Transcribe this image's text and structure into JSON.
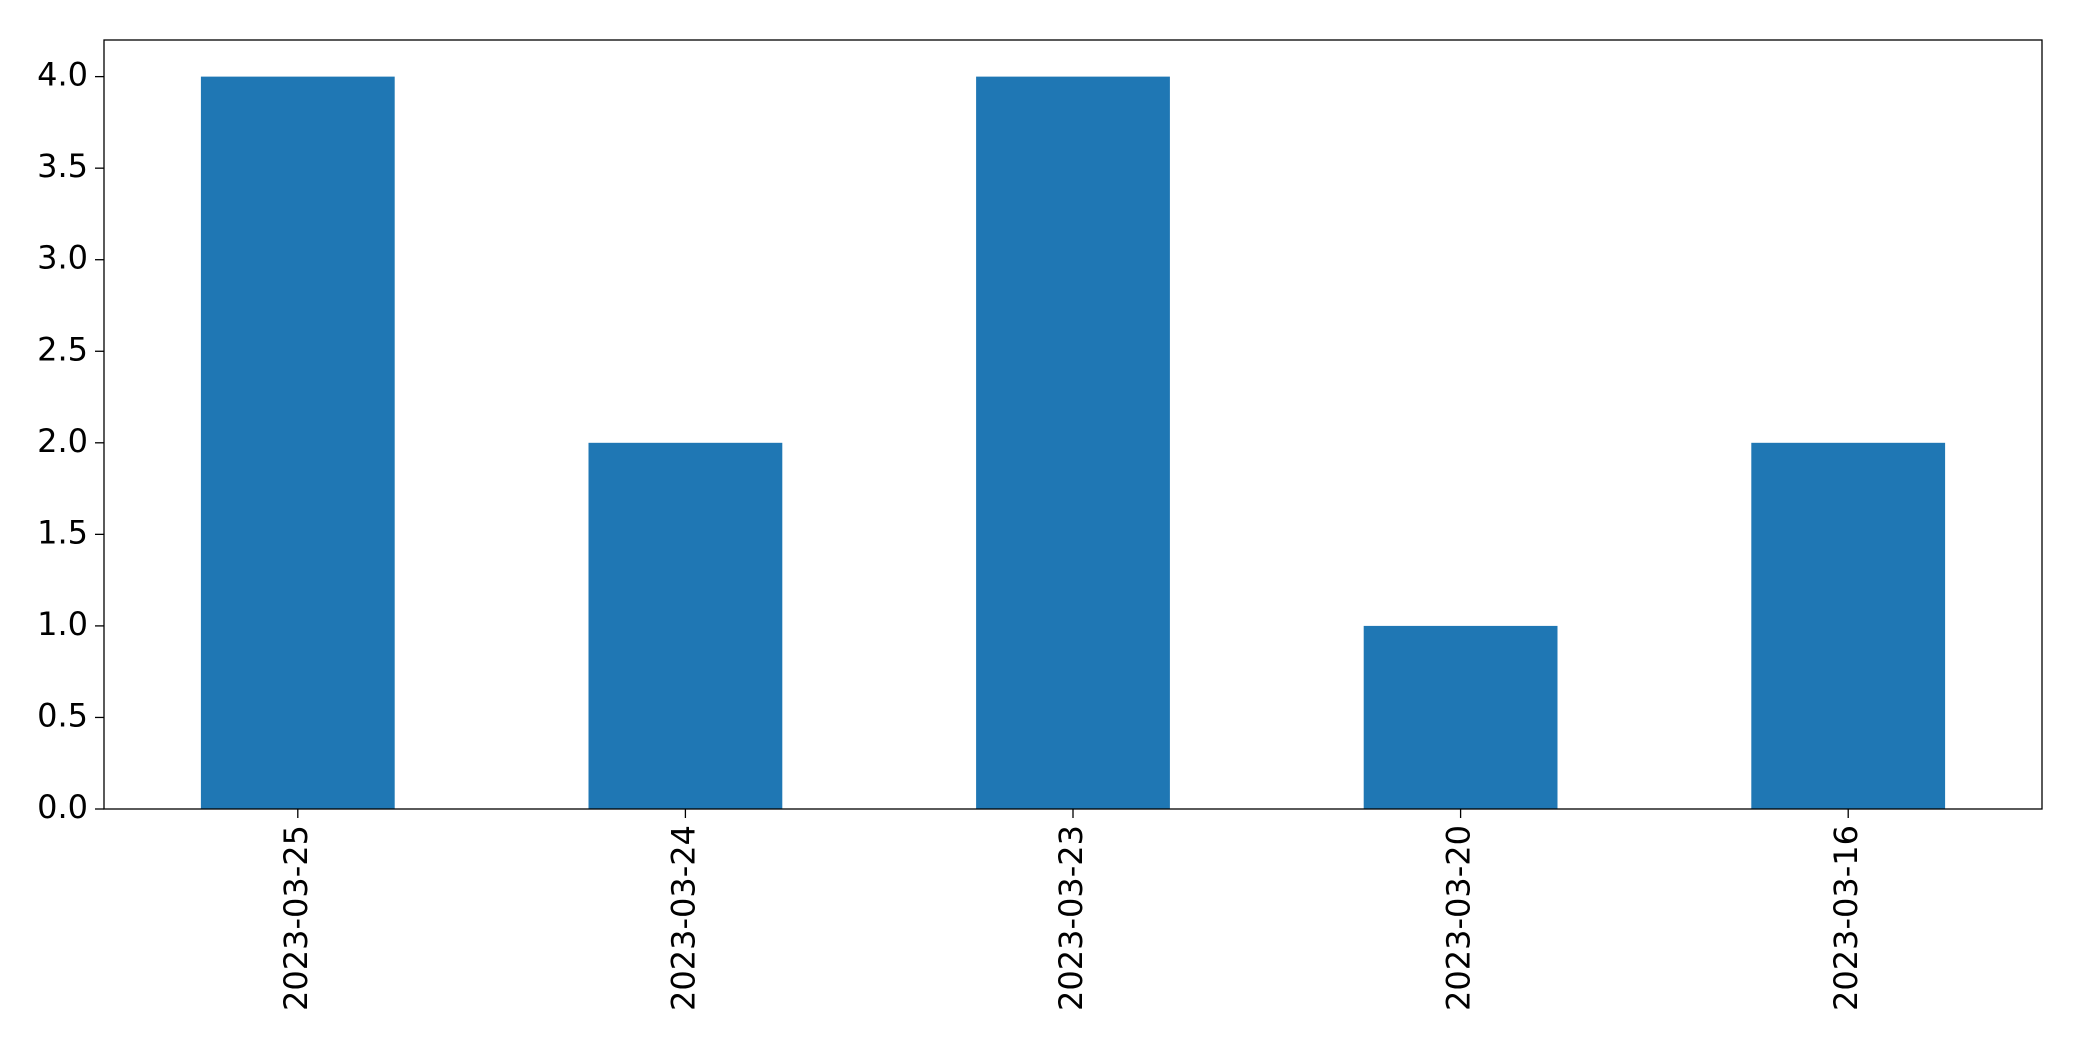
{
  "chart_data": {
    "type": "bar",
    "categories": [
      "2023-03-25",
      "2023-03-24",
      "2023-03-23",
      "2023-03-20",
      "2023-03-16"
    ],
    "values": [
      4,
      2,
      4,
      1,
      2
    ],
    "color": "#1f77b4",
    "ylim": [
      0,
      4.2
    ],
    "yticks": [
      {
        "value": 0,
        "label": "0.0"
      },
      0.5,
      {
        "value": 1,
        "label": "1.0"
      },
      1.5,
      {
        "value": 2,
        "label": "2.0"
      },
      2.5,
      {
        "value": 3,
        "label": "3.0"
      },
      3.5,
      {
        "value": 4,
        "label": "4.0"
      }
    ],
    "grid": false
  }
}
